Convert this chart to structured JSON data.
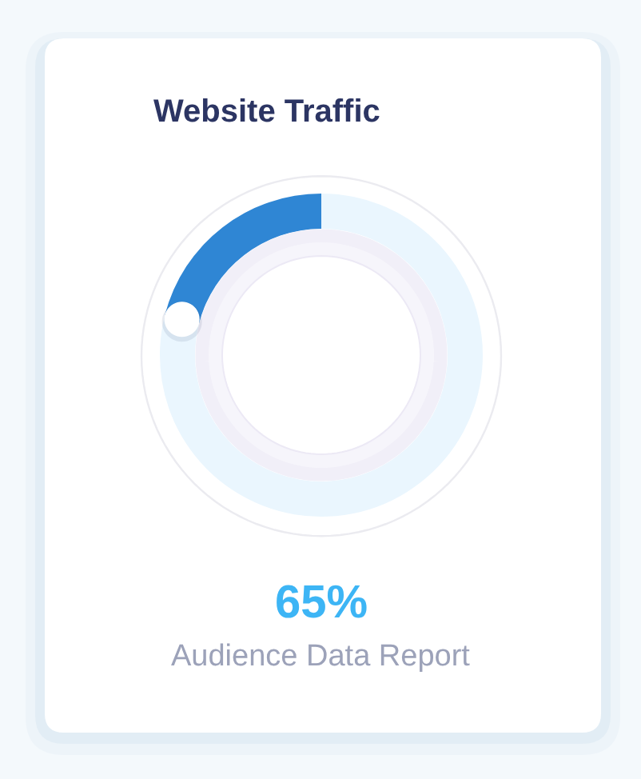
{
  "chart_data": {
    "type": "donut",
    "title": "Website Traffic",
    "categories": [
      null,
      null
    ],
    "values": [
      21,
      79
    ],
    "colors": [
      "#2f86d4",
      "#eaf6fe"
    ],
    "annotations": [
      "65%",
      "Audience Data Report"
    ]
  }
}
